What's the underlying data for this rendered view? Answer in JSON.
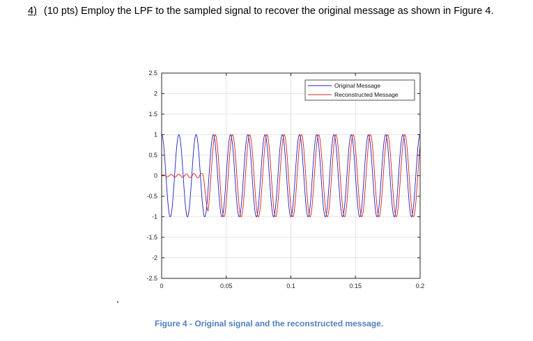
{
  "question": {
    "number": "4)",
    "text": "(10 pts) Employ the LPF to the sampled signal to recover the original message as shown in Figure 4."
  },
  "caption": "Figure 4 - Original signal and the reconstructed message.",
  "chart_data": {
    "type": "line",
    "title": "",
    "xlabel": "",
    "ylabel": "",
    "xlim": [
      0,
      0.2
    ],
    "ylim": [
      -2.5,
      2.5
    ],
    "grid": true,
    "legend_placement": "top-right",
    "x_ticks": [
      0,
      0.05,
      0.1,
      0.15,
      0.2
    ],
    "x_tick_labels": [
      "0",
      "0.05",
      "0.1",
      "0.15",
      "0.2"
    ],
    "y_ticks": [
      2.5,
      2,
      1.5,
      1,
      0.5,
      0,
      -0.5,
      -1,
      -1.5,
      -2,
      -2.5
    ],
    "y_tick_labels": [
      "2.5",
      "2",
      "1.5",
      "1",
      "0.5",
      "0",
      "-0.5",
      "-1",
      "-1.5",
      "-2",
      "-2.5"
    ],
    "series": [
      {
        "name": "Original Message",
        "color": "#1f1fbf",
        "function": "cosine",
        "amplitude": 1,
        "frequency_hz": 75,
        "x_range": [
          0,
          0.2
        ]
      },
      {
        "name": "Reconstructed Message",
        "color": "#d42020",
        "function": "cosine",
        "amplitude": 1,
        "frequency_hz": 75,
        "delay_s": 0.0015,
        "transient_until_s": 0.032,
        "transient_peak_amplitude": 0.06,
        "x_range": [
          0,
          0.2
        ]
      }
    ]
  }
}
